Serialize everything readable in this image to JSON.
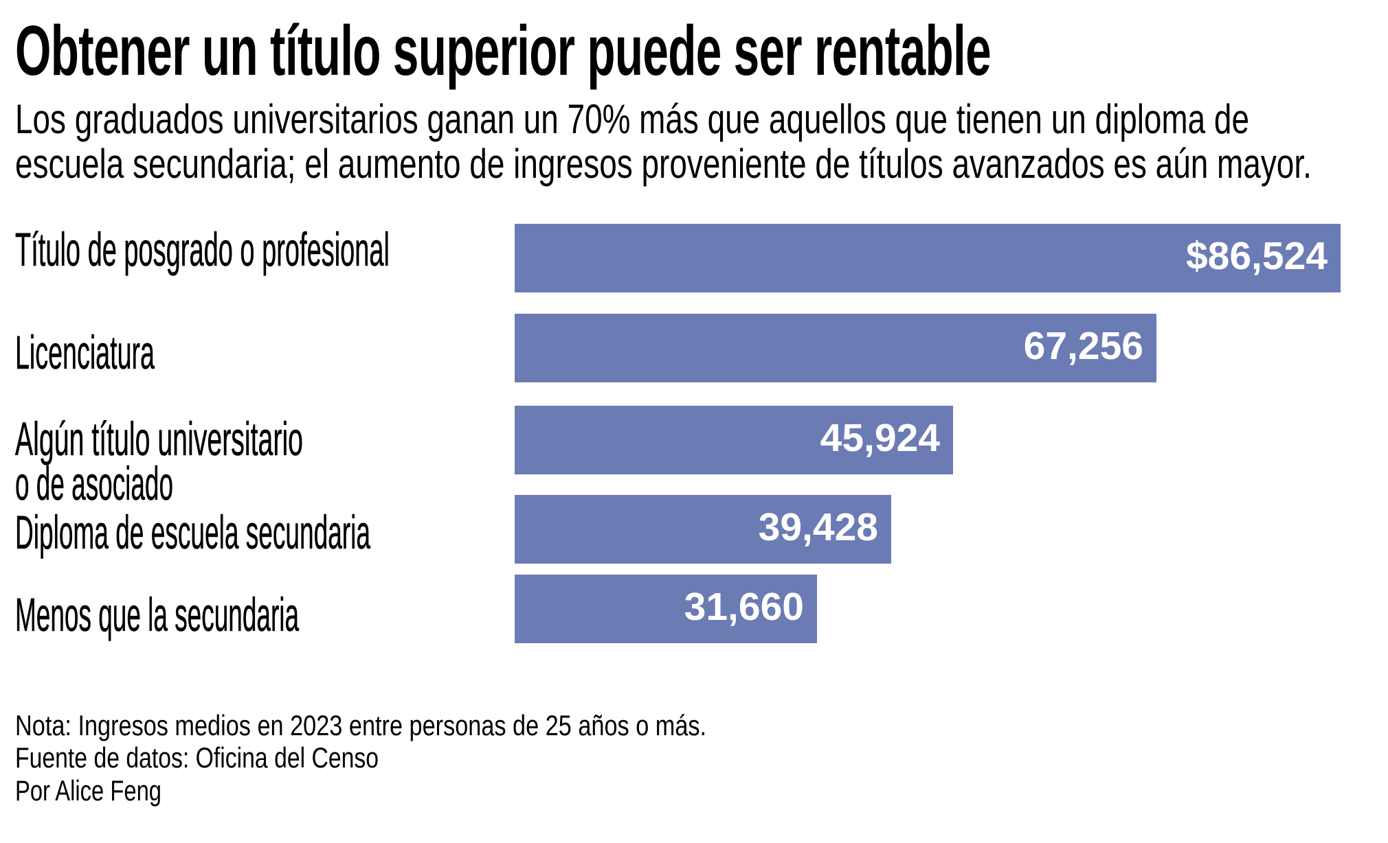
{
  "header": {
    "title": "Obtener un título superior puede ser rentable",
    "subtitle_lines": [
      "Los graduados universitarios ganan un 70% más que aquellos que tienen un diploma de",
      "escuela secundaria; el aumento de ingresos proveniente de títulos avanzados es aún mayor."
    ]
  },
  "chart_data": {
    "type": "bar",
    "orientation": "horizontal",
    "title": "Obtener un título superior puede ser rentable",
    "xlabel": "",
    "ylabel": "",
    "categories": [
      [
        "Título de posgrado o profesional"
      ],
      [
        "Licenciatura"
      ],
      [
        "Algún título universitario",
        "o de asociado"
      ],
      [
        "Diploma de escuela secundaria"
      ],
      [
        "Menos que la secundaria"
      ]
    ],
    "values": [
      86524,
      67256,
      45924,
      39428,
      31660
    ],
    "value_labels": [
      "$86,524",
      "67,256",
      "45,924",
      "39,428",
      "31,660"
    ],
    "xlim": [
      0,
      86524
    ],
    "grid": false,
    "legend": "none",
    "bar_color": "#6b7bb4",
    "label_color": "#ffffff"
  },
  "footer": {
    "note": "Nota: Ingresos medios en 2023 entre personas de 25 años o más.",
    "source": "Fuente de datos: Oficina del Censo",
    "byline": "Por Alice Feng"
  }
}
